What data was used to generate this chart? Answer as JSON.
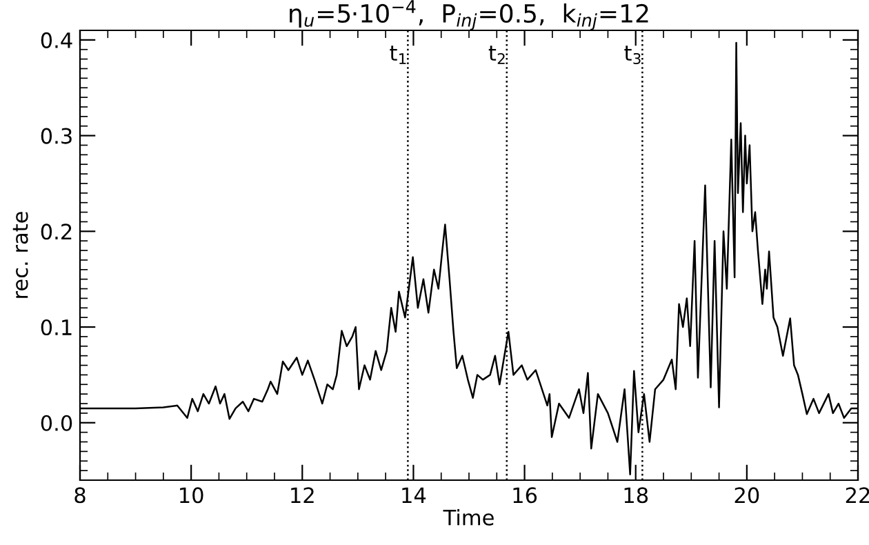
{
  "chart_data": {
    "type": "line",
    "title": "η$_{u}$=5·10$^{−4}$,  P$_{inj}$=0.5,  k$_{inj}$=12",
    "xlabel": "Time",
    "ylabel": "rec. rate",
    "series": [
      {
        "color": "#000000",
        "x": [
          8,
          9.0,
          9.5,
          9.75,
          9.93,
          10.02,
          10.12,
          10.22,
          10.32,
          10.44,
          10.52,
          10.6,
          10.69,
          10.8,
          10.93,
          11.03,
          11.13,
          11.28,
          11.38,
          11.43,
          11.55,
          11.65,
          11.75,
          11.9,
          12.0,
          12.1,
          12.22,
          12.36,
          12.45,
          12.55,
          12.62,
          12.71,
          12.8,
          12.9,
          12.96,
          13.02,
          13.12,
          13.22,
          13.32,
          13.42,
          13.52,
          13.6,
          13.68,
          13.74,
          13.85,
          13.99,
          14.08,
          14.18,
          14.27,
          14.37,
          14.45,
          14.52,
          14.57,
          14.65,
          14.72,
          14.78,
          14.88,
          14.98,
          15.07,
          15.15,
          15.25,
          15.38,
          15.47,
          15.55,
          15.71,
          15.8,
          15.95,
          16.05,
          16.2,
          16.41,
          16.45,
          16.49,
          16.62,
          16.8,
          16.98,
          17.06,
          17.14,
          17.2,
          17.32,
          17.5,
          17.67,
          17.8,
          17.9,
          17.97,
          18.05,
          18.15,
          18.25,
          18.35,
          18.5,
          18.65,
          18.72,
          18.78,
          18.85,
          18.92,
          18.98,
          19.06,
          19.12,
          19.25,
          19.35,
          19.42,
          19.5,
          19.58,
          19.64,
          19.72,
          19.78,
          19.81,
          19.84,
          19.89,
          19.93,
          19.97,
          20.0,
          20.05,
          20.1,
          20.15,
          20.2,
          20.28,
          20.33,
          20.36,
          20.4,
          20.48,
          20.55,
          20.65,
          20.78,
          20.85,
          20.92,
          21.0,
          21.08,
          21.2,
          21.3,
          21.47,
          21.55,
          21.65,
          21.75,
          21.88,
          22.0
        ],
        "values": [
          0.015,
          0.015,
          0.016,
          0.018,
          0.005,
          0.025,
          0.012,
          0.03,
          0.02,
          0.038,
          0.02,
          0.03,
          0.004,
          0.015,
          0.022,
          0.012,
          0.025,
          0.022,
          0.035,
          0.043,
          0.03,
          0.064,
          0.055,
          0.068,
          0.05,
          0.065,
          0.045,
          0.02,
          0.04,
          0.035,
          0.05,
          0.096,
          0.08,
          0.09,
          0.1,
          0.035,
          0.06,
          0.045,
          0.075,
          0.055,
          0.075,
          0.12,
          0.095,
          0.137,
          0.11,
          0.173,
          0.12,
          0.15,
          0.115,
          0.16,
          0.14,
          0.18,
          0.207,
          0.15,
          0.096,
          0.057,
          0.07,
          0.045,
          0.026,
          0.05,
          0.045,
          0.05,
          0.07,
          0.04,
          0.095,
          0.05,
          0.06,
          0.045,
          0.055,
          0.018,
          0.03,
          -0.015,
          0.02,
          0.005,
          0.035,
          0.01,
          0.052,
          -0.027,
          0.03,
          0.01,
          -0.02,
          0.035,
          -0.054,
          0.054,
          -0.01,
          0.03,
          -0.02,
          0.035,
          0.045,
          0.066,
          0.035,
          0.124,
          0.1,
          0.13,
          0.08,
          0.19,
          0.047,
          0.248,
          0.037,
          0.19,
          0.016,
          0.2,
          0.14,
          0.296,
          0.152,
          0.397,
          0.24,
          0.313,
          0.22,
          0.3,
          0.25,
          0.29,
          0.2,
          0.22,
          0.18,
          0.124,
          0.16,
          0.14,
          0.179,
          0.11,
          0.1,
          0.07,
          0.109,
          0.06,
          0.05,
          0.03,
          0.009,
          0.025,
          0.01,
          0.03,
          0.01,
          0.02,
          0.005,
          0.015,
          0.015
        ]
      }
    ],
    "xlim": [
      8,
      22
    ],
    "xticks": [
      8,
      10,
      12,
      14,
      16,
      18,
      20,
      22
    ],
    "ylim": [
      -0.06,
      0.41
    ],
    "yticks": [
      {
        "value": 0,
        "label": "0.0"
      },
      0.1,
      0.2,
      0.3,
      0.4
    ],
    "ref_lines": [
      {
        "axis": "x",
        "value": 13.9,
        "label": "t$_{1}$",
        "line_style": "dotted"
      },
      {
        "axis": "x",
        "value": 15.68,
        "label": "t$_{2}$",
        "line_style": "dotted"
      },
      {
        "axis": "x",
        "value": 18.12,
        "label": "t$_{3}$",
        "line_style": "dotted"
      }
    ],
    "line_style": "solid",
    "grid": false,
    "legend": false
  }
}
